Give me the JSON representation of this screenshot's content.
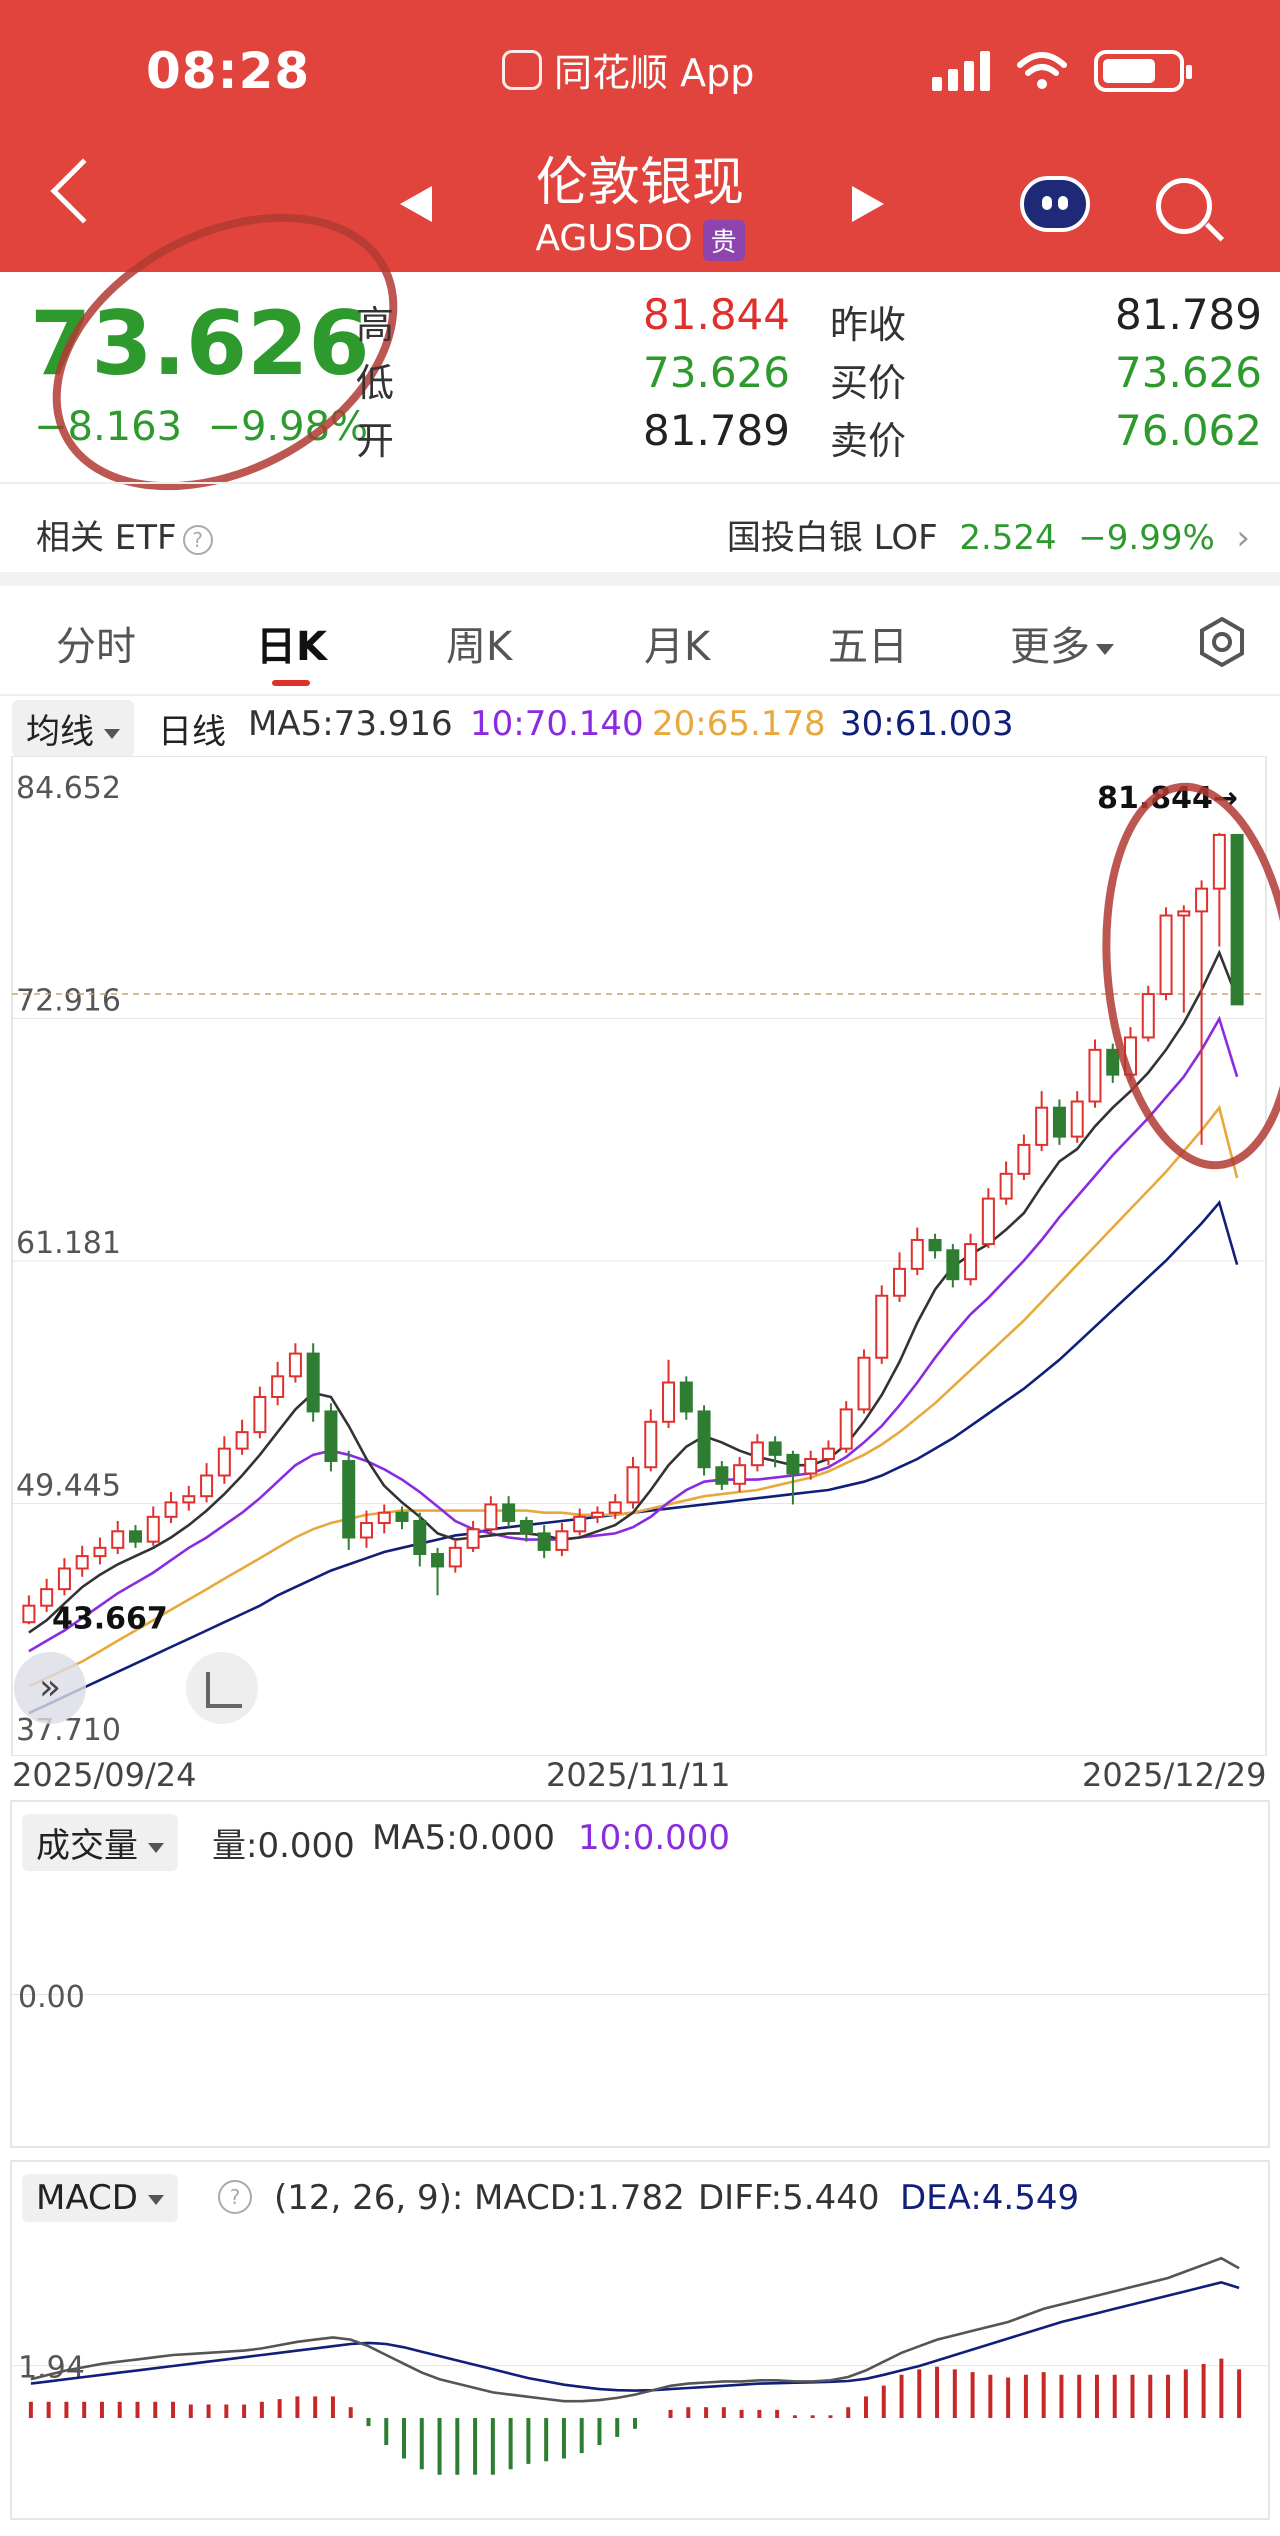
{
  "status": {
    "time": "08:28",
    "app": "同花顺 App"
  },
  "header": {
    "title": "伦敦银现",
    "code": "AGUSDO",
    "badge": "贵"
  },
  "quote": {
    "price": "73.626",
    "change": "−8.163",
    "change_pct": "−9.98%",
    "high_label": "高",
    "high": "81.844",
    "low_label": "低",
    "low": "73.626",
    "open_label": "开",
    "open": "81.789",
    "prev_close_label": "昨收",
    "prev_close": "81.789",
    "bid_label": "买价",
    "bid": "73.626",
    "ask_label": "卖价",
    "ask": "76.062"
  },
  "etf": {
    "label": "相关 ETF",
    "name": "国投白银 LOF",
    "price": "2.524",
    "pct": "−9.99%"
  },
  "tabs": [
    "分时",
    "日K",
    "周K",
    "月K",
    "五日",
    "更多"
  ],
  "ma_bar": {
    "select": "均线",
    "period": "日线",
    "ma5": "MA5:73.916",
    "ma10": "10:70.140",
    "ma20": "20:65.178",
    "ma30": "30:61.003"
  },
  "colors": {
    "header": "#e0443c",
    "up": "#e0302c",
    "down": "#2e7d32",
    "ma5": "#333333",
    "ma10": "#8a2be2",
    "ma20": "#e8a93c",
    "ma30": "#0f1f7a"
  },
  "chart_data": {
    "type": "candlestick",
    "y_ticks": [
      "84.652",
      "72.916",
      "61.181",
      "49.445",
      "37.710"
    ],
    "ylim": [
      37.71,
      84.652
    ],
    "max_marker": "81.844→",
    "min_marker": "43.667",
    "dates": [
      "2025/09/24",
      "2025/11/11",
      "2025/12/29"
    ],
    "candles": [
      [
        43.7,
        44.5,
        43.6,
        45.0
      ],
      [
        44.5,
        45.3,
        44.2,
        45.8
      ],
      [
        45.3,
        46.3,
        45.0,
        46.8
      ],
      [
        46.3,
        46.9,
        45.9,
        47.4
      ],
      [
        46.9,
        47.3,
        46.5,
        47.8
      ],
      [
        47.3,
        48.1,
        47.0,
        48.6
      ],
      [
        48.1,
        47.6,
        47.3,
        48.4
      ],
      [
        47.6,
        48.8,
        47.4,
        49.3
      ],
      [
        48.8,
        49.5,
        48.5,
        50.0
      ],
      [
        49.5,
        49.8,
        49.1,
        50.3
      ],
      [
        49.8,
        50.8,
        49.5,
        51.4
      ],
      [
        50.8,
        52.1,
        50.4,
        52.7
      ],
      [
        52.1,
        52.9,
        51.8,
        53.5
      ],
      [
        52.9,
        54.6,
        52.6,
        55.1
      ],
      [
        54.6,
        55.6,
        54.2,
        56.3
      ],
      [
        55.6,
        56.7,
        55.3,
        57.2
      ],
      [
        56.7,
        53.9,
        53.4,
        57.2
      ],
      [
        53.9,
        51.5,
        51.0,
        54.3
      ],
      [
        51.5,
        47.8,
        47.2,
        52.0
      ],
      [
        47.8,
        48.5,
        47.3,
        49.1
      ],
      [
        48.5,
        49.0,
        48.0,
        49.4
      ],
      [
        49.0,
        48.6,
        48.2,
        49.3
      ],
      [
        48.6,
        47.0,
        46.4,
        49.0
      ],
      [
        47.0,
        46.4,
        45.0,
        47.3
      ],
      [
        46.4,
        47.3,
        46.1,
        47.7
      ],
      [
        47.3,
        48.2,
        47.1,
        48.6
      ],
      [
        48.2,
        49.4,
        48.0,
        49.8
      ],
      [
        49.4,
        48.6,
        48.3,
        49.8
      ],
      [
        48.6,
        48.0,
        47.6,
        48.8
      ],
      [
        48.0,
        47.2,
        46.8,
        48.4
      ],
      [
        47.2,
        48.1,
        46.9,
        48.5
      ],
      [
        48.1,
        48.8,
        47.9,
        49.2
      ],
      [
        48.8,
        49.0,
        48.5,
        49.3
      ],
      [
        49.0,
        49.5,
        48.7,
        49.9
      ],
      [
        49.5,
        51.2,
        49.2,
        51.7
      ],
      [
        51.2,
        53.4,
        51.0,
        54.0
      ],
      [
        53.4,
        55.3,
        53.1,
        56.4
      ],
      [
        55.3,
        53.9,
        53.5,
        55.6
      ],
      [
        53.9,
        51.2,
        50.8,
        54.2
      ],
      [
        51.2,
        50.4,
        50.1,
        51.5
      ],
      [
        50.4,
        51.3,
        50.0,
        51.7
      ],
      [
        51.3,
        52.4,
        51.0,
        52.8
      ],
      [
        52.4,
        51.8,
        51.2,
        52.7
      ],
      [
        51.8,
        50.9,
        49.4,
        52.0
      ],
      [
        50.9,
        51.6,
        50.6,
        52.0
      ],
      [
        51.6,
        52.1,
        51.3,
        52.5
      ],
      [
        52.1,
        54.0,
        51.9,
        54.4
      ],
      [
        54.0,
        56.5,
        53.8,
        56.9
      ],
      [
        56.5,
        59.5,
        56.2,
        60.0
      ],
      [
        59.5,
        60.8,
        59.2,
        61.6
      ],
      [
        60.8,
        62.2,
        60.5,
        62.8
      ],
      [
        62.2,
        61.7,
        61.3,
        62.5
      ],
      [
        61.7,
        60.3,
        59.9,
        62.0
      ],
      [
        60.3,
        62.0,
        60.0,
        62.5
      ],
      [
        62.0,
        64.2,
        61.8,
        64.7
      ],
      [
        64.2,
        65.4,
        63.9,
        66.0
      ],
      [
        65.4,
        66.8,
        65.1,
        67.3
      ],
      [
        66.8,
        68.6,
        66.5,
        69.4
      ],
      [
        68.6,
        67.2,
        66.8,
        69.0
      ],
      [
        67.2,
        68.9,
        66.9,
        69.4
      ],
      [
        68.9,
        71.4,
        68.6,
        71.9
      ],
      [
        71.4,
        70.2,
        69.8,
        71.7
      ],
      [
        70.2,
        72.0,
        69.9,
        72.5
      ],
      [
        72.0,
        74.1,
        71.8,
        74.5
      ],
      [
        74.1,
        77.9,
        73.8,
        78.3
      ],
      [
        77.9,
        78.1,
        73.2,
        78.4
      ],
      [
        78.1,
        79.2,
        66.8,
        79.6
      ],
      [
        79.2,
        81.8,
        76.4,
        81.9
      ],
      [
        81.8,
        73.6,
        73.6,
        81.844
      ]
    ],
    "ma5": [
      43.2,
      43.8,
      44.6,
      45.4,
      46.0,
      46.5,
      46.9,
      47.3,
      47.8,
      48.4,
      49.1,
      49.9,
      50.8,
      51.8,
      52.9,
      54.0,
      54.8,
      54.6,
      53.2,
      51.6,
      50.3,
      49.5,
      48.8,
      48.0,
      47.7,
      47.8,
      47.9,
      48.0,
      48.0,
      47.9,
      47.7,
      47.8,
      48.1,
      48.4,
      49.0,
      50.1,
      51.3,
      52.2,
      52.7,
      52.4,
      52.0,
      51.7,
      51.5,
      51.3,
      51.3,
      51.6,
      52.3,
      53.4,
      54.7,
      56.3,
      58.2,
      59.8,
      60.9,
      61.5,
      62.0,
      62.7,
      63.5,
      64.8,
      66.0,
      66.6,
      67.7,
      68.6,
      69.4,
      70.3,
      71.4,
      72.7,
      74.3,
      76.1,
      73.9
    ],
    "ma10": [
      42.3,
      42.8,
      43.3,
      43.9,
      44.5,
      45.1,
      45.6,
      46.1,
      46.7,
      47.3,
      47.8,
      48.4,
      49.0,
      49.7,
      50.5,
      51.3,
      51.8,
      52.0,
      51.8,
      51.5,
      51.1,
      50.6,
      50.0,
      49.3,
      48.6,
      48.2,
      48.0,
      47.8,
      47.7,
      47.7,
      47.7,
      47.8,
      47.9,
      48.0,
      48.3,
      48.8,
      49.5,
      50.1,
      50.5,
      50.6,
      50.6,
      50.6,
      50.7,
      50.8,
      50.9,
      51.2,
      51.7,
      52.4,
      53.2,
      54.2,
      55.3,
      56.5,
      57.6,
      58.6,
      59.4,
      60.3,
      61.2,
      62.2,
      63.3,
      64.3,
      65.3,
      66.3,
      67.2,
      68.1,
      69.1,
      70.1,
      71.4,
      72.9,
      70.1
    ],
    "ma20": [
      40.6,
      41.0,
      41.4,
      41.8,
      42.3,
      42.8,
      43.3,
      43.8,
      44.3,
      44.8,
      45.3,
      45.8,
      46.3,
      46.8,
      47.3,
      47.8,
      48.2,
      48.5,
      48.7,
      48.9,
      49.0,
      49.1,
      49.1,
      49.1,
      49.1,
      49.1,
      49.1,
      49.1,
      49.1,
      49.0,
      49.0,
      48.9,
      48.9,
      48.9,
      49.0,
      49.2,
      49.4,
      49.6,
      49.8,
      49.9,
      50.0,
      50.1,
      50.3,
      50.5,
      50.7,
      51.0,
      51.4,
      51.8,
      52.3,
      52.9,
      53.6,
      54.3,
      55.1,
      55.9,
      56.7,
      57.5,
      58.3,
      59.2,
      60.1,
      61.0,
      61.9,
      62.8,
      63.7,
      64.6,
      65.5,
      66.5,
      67.5,
      68.6,
      65.2
    ],
    "ma30": [
      39.3,
      39.7,
      40.1,
      40.5,
      40.9,
      41.3,
      41.7,
      42.1,
      42.5,
      42.9,
      43.3,
      43.7,
      44.1,
      44.5,
      45.0,
      45.4,
      45.8,
      46.2,
      46.5,
      46.8,
      47.1,
      47.3,
      47.5,
      47.7,
      47.9,
      48.0,
      48.2,
      48.3,
      48.4,
      48.5,
      48.6,
      48.7,
      48.8,
      48.9,
      49.0,
      49.1,
      49.2,
      49.3,
      49.4,
      49.5,
      49.6,
      49.7,
      49.8,
      49.9,
      50.0,
      50.1,
      50.3,
      50.5,
      50.8,
      51.2,
      51.6,
      52.1,
      52.6,
      53.2,
      53.8,
      54.4,
      55.0,
      55.7,
      56.4,
      57.2,
      58.0,
      58.8,
      59.6,
      60.4,
      61.2,
      62.1,
      63.0,
      64.0,
      61.0
    ]
  },
  "volume": {
    "select": "成交量",
    "vol": "量:0.000",
    "ma5": "MA5:0.000",
    "ma10": "10:0.000",
    "y_tick": "0.00"
  },
  "macd": {
    "select": "MACD",
    "params": "(12, 26, 9):",
    "macd": "MACD:1.782",
    "diff": "DIFF:5.440",
    "dea": "DEA:4.549",
    "y_tick": "1.94",
    "diff_series": [
      0.4,
      0.6,
      0.8,
      0.95,
      1.1,
      1.2,
      1.3,
      1.4,
      1.5,
      1.55,
      1.6,
      1.65,
      1.7,
      1.8,
      1.95,
      2.1,
      2.2,
      2.3,
      2.2,
      1.9,
      1.5,
      1.1,
      0.7,
      0.4,
      0.2,
      0.0,
      -0.2,
      -0.3,
      -0.4,
      -0.5,
      -0.6,
      -0.6,
      -0.55,
      -0.45,
      -0.3,
      -0.1,
      0.1,
      0.2,
      0.25,
      0.3,
      0.3,
      0.35,
      0.35,
      0.3,
      0.3,
      0.35,
      0.5,
      0.8,
      1.2,
      1.6,
      1.9,
      2.2,
      2.4,
      2.6,
      2.8,
      3.0,
      3.3,
      3.6,
      3.8,
      4.0,
      4.2,
      4.4,
      4.6,
      4.8,
      5.0,
      5.3,
      5.6,
      5.9,
      5.44
    ],
    "dea_series": [
      0.2,
      0.3,
      0.4,
      0.5,
      0.6,
      0.7,
      0.8,
      0.9,
      1.0,
      1.1,
      1.2,
      1.3,
      1.4,
      1.5,
      1.6,
      1.7,
      1.8,
      1.9,
      2.0,
      2.05,
      2.0,
      1.85,
      1.65,
      1.45,
      1.25,
      1.05,
      0.85,
      0.65,
      0.45,
      0.3,
      0.15,
      0.05,
      -0.05,
      -0.1,
      -0.12,
      -0.1,
      -0.05,
      0.0,
      0.05,
      0.1,
      0.15,
      0.2,
      0.22,
      0.24,
      0.26,
      0.28,
      0.32,
      0.42,
      0.6,
      0.8,
      1.0,
      1.25,
      1.5,
      1.75,
      2.0,
      2.25,
      2.5,
      2.75,
      3.0,
      3.2,
      3.4,
      3.6,
      3.8,
      4.0,
      4.2,
      4.4,
      4.6,
      4.8,
      4.549
    ],
    "hist": [
      0.6,
      0.6,
      0.6,
      0.6,
      0.6,
      0.6,
      0.6,
      0.6,
      0.6,
      0.5,
      0.5,
      0.5,
      0.5,
      0.6,
      0.7,
      0.8,
      0.8,
      0.8,
      0.4,
      -0.3,
      -1.0,
      -1.5,
      -1.9,
      -2.1,
      -2.1,
      -2.1,
      -2.1,
      -1.9,
      -1.7,
      -1.6,
      -1.5,
      -1.3,
      -1.0,
      -0.7,
      -0.4,
      0.0,
      0.3,
      0.4,
      0.4,
      0.4,
      0.3,
      0.3,
      0.3,
      0.1,
      0.1,
      0.1,
      0.4,
      0.8,
      1.2,
      1.6,
      1.8,
      1.9,
      1.8,
      1.7,
      1.6,
      1.5,
      1.6,
      1.7,
      1.6,
      1.6,
      1.6,
      1.6,
      1.6,
      1.6,
      1.6,
      1.8,
      2.0,
      2.2,
      1.8
    ]
  }
}
